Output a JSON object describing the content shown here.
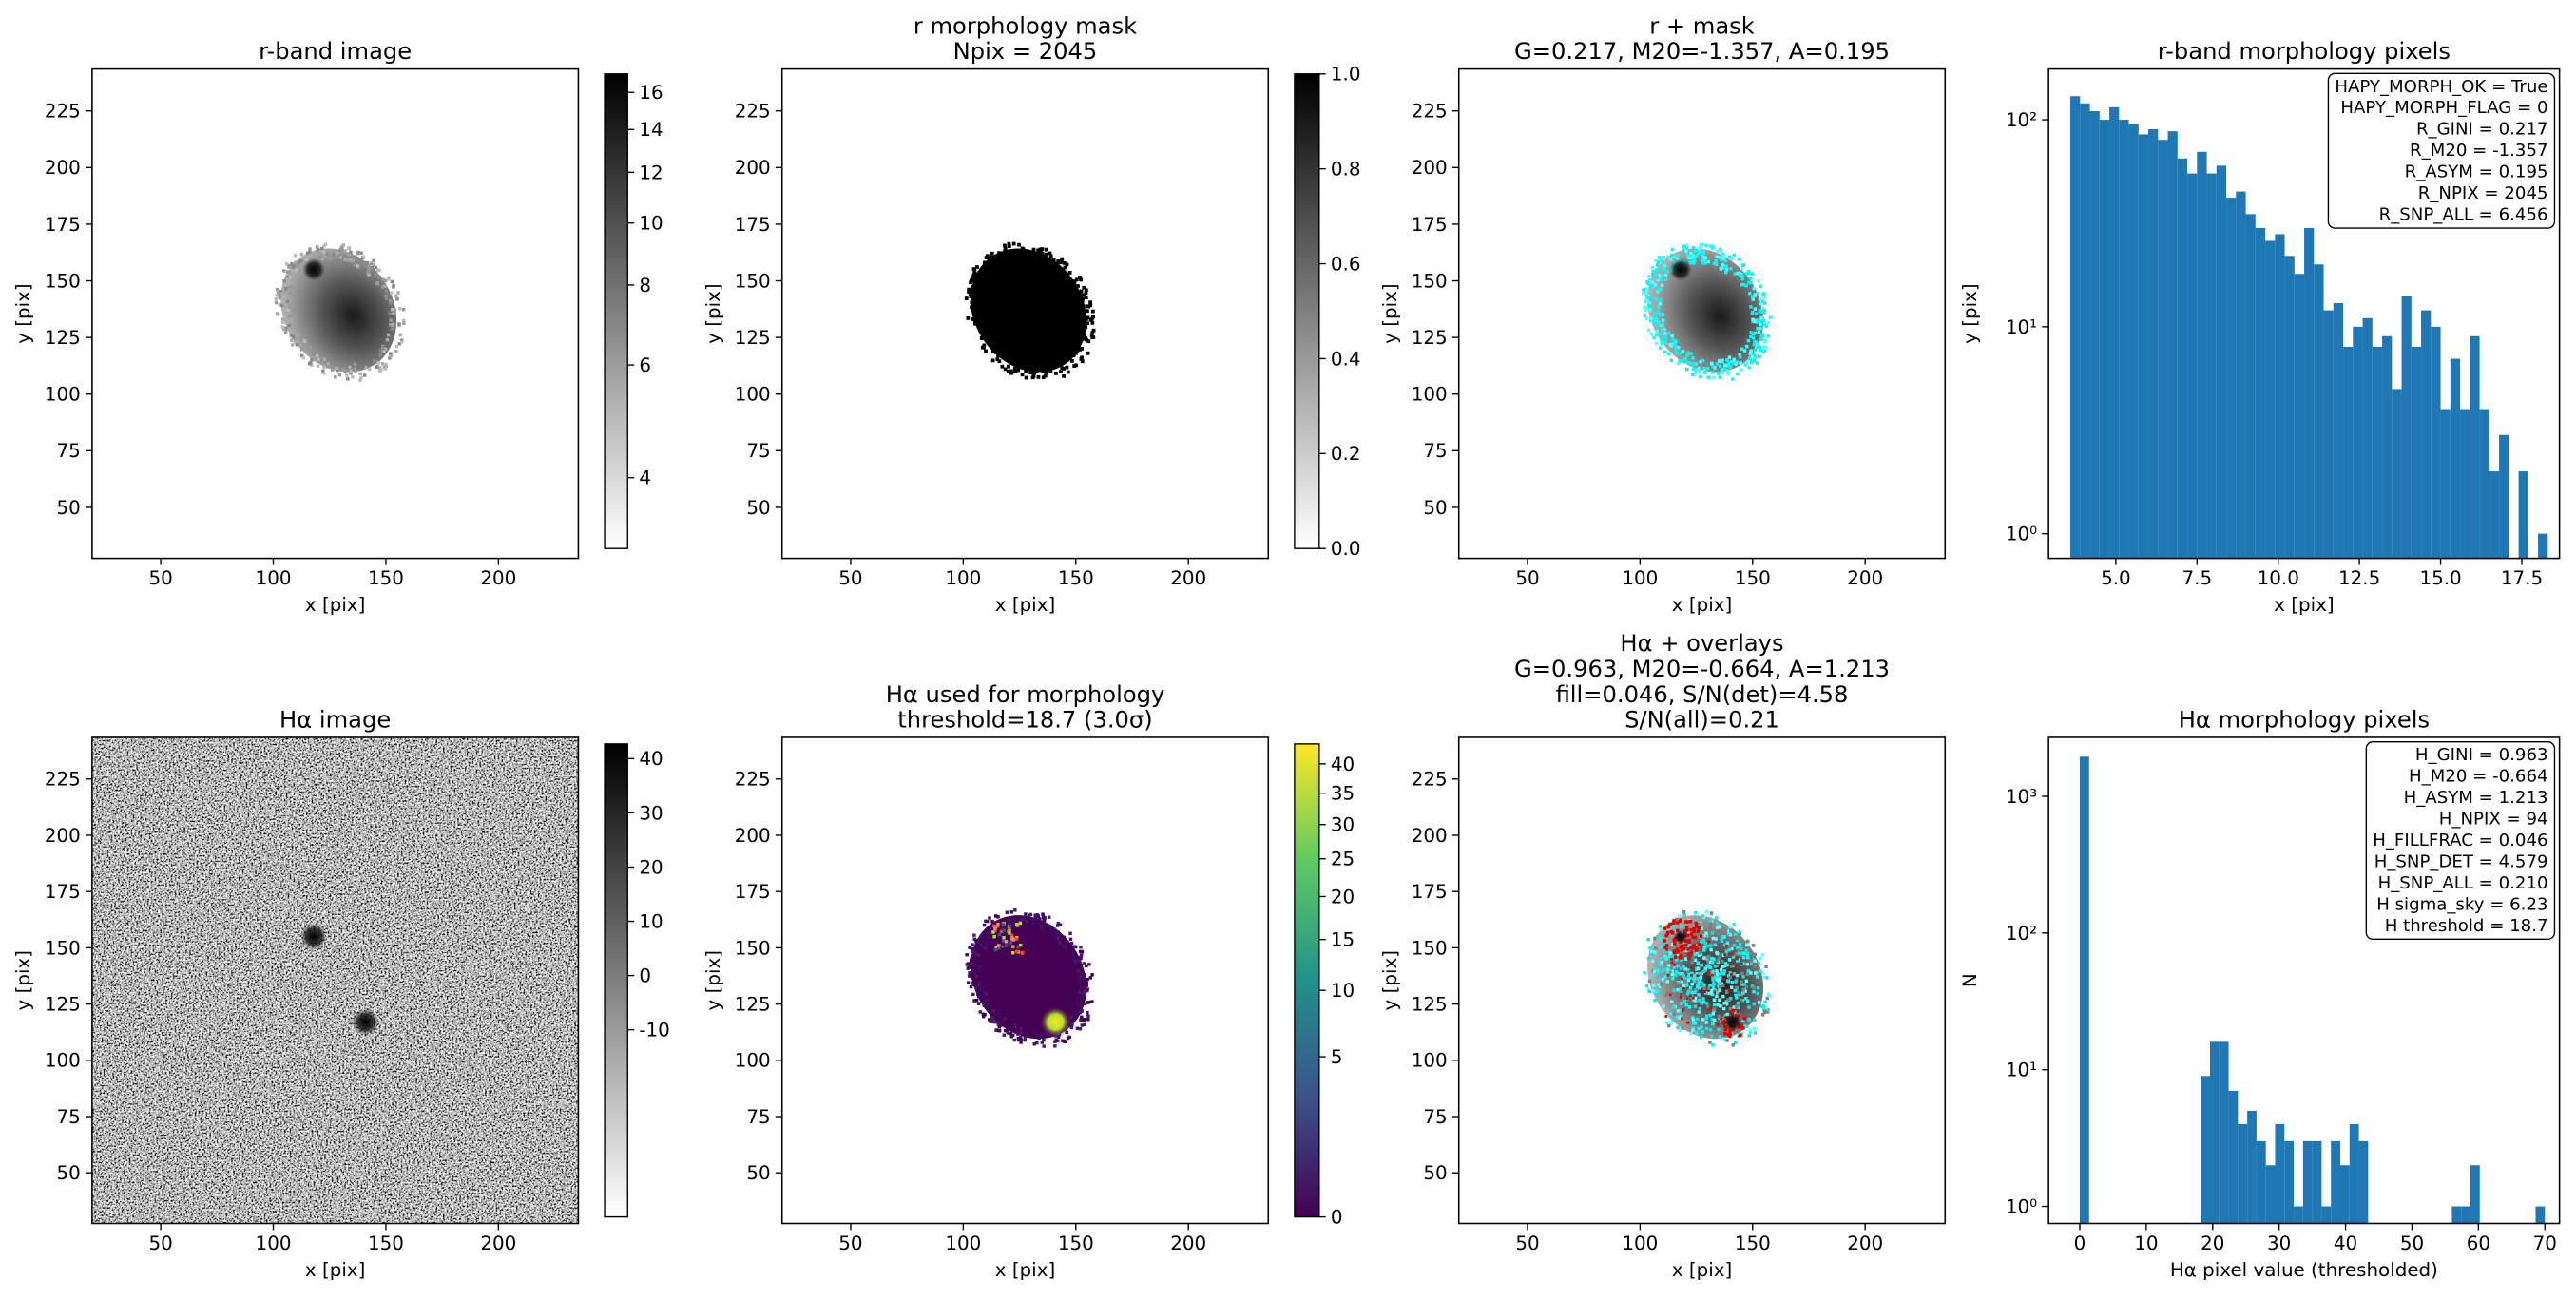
{
  "chart_data": [
    {
      "type": "image",
      "title": [
        "r-band image"
      ],
      "xlabel": "x [pix]",
      "ylabel": "y [pix]",
      "xlim": [
        19.5,
        235.5
      ],
      "ylim": [
        27.5,
        243.5
      ],
      "xticks": [
        50,
        100,
        150,
        200
      ],
      "yticks": [
        50,
        75,
        100,
        125,
        150,
        175,
        200,
        225
      ],
      "colorbar": {
        "cmap": "gray_r",
        "scale": "log",
        "lim": [
          3.1,
          17.1
        ],
        "ticks": [
          4,
          6,
          8,
          10,
          12,
          14,
          16
        ]
      }
    },
    {
      "type": "image",
      "title": [
        "r morphology mask",
        "Npix = 2045"
      ],
      "xlabel": "x [pix]",
      "ylabel": "y [pix]",
      "xlim": [
        19.5,
        235.5
      ],
      "ylim": [
        27.5,
        243.5
      ],
      "xticks": [
        50,
        100,
        150,
        200
      ],
      "yticks": [
        50,
        75,
        100,
        125,
        150,
        175,
        200,
        225
      ],
      "colorbar": {
        "cmap": "gray_r",
        "scale": "linear",
        "lim": [
          0,
          1
        ],
        "ticks": [
          {
            "value": 0,
            "label": "0.0"
          },
          0.2,
          0.4,
          0.6,
          0.8,
          {
            "value": 1,
            "label": "1.0"
          }
        ]
      }
    },
    {
      "type": "image",
      "title": [
        "r + mask",
        "G=0.217, M20=-1.357, A=0.195"
      ],
      "xlabel": "x [pix]",
      "ylabel": "y [pix]",
      "xlim": [
        19.5,
        235.5
      ],
      "ylim": [
        27.5,
        243.5
      ],
      "xticks": [
        50,
        100,
        150,
        200
      ],
      "yticks": [
        50,
        75,
        100,
        125,
        150,
        175,
        200,
        225
      ]
    },
    {
      "type": "histogram",
      "title": [
        "r-band morphology pixels"
      ],
      "xlabel": "x [pix]",
      "ylabel": "y [pix]",
      "color": "#1f77b4",
      "yscale": "log",
      "bins": [
        3.6,
        3.9,
        4.2,
        4.5,
        4.8,
        5.1,
        5.4,
        5.7,
        6,
        6.3,
        6.6,
        6.9,
        7.2,
        7.5,
        7.8,
        8.1,
        8.4,
        8.7,
        9,
        9.3,
        9.6,
        9.9,
        10.2,
        10.5,
        10.8,
        11.1,
        11.4,
        11.7,
        12,
        12.3,
        12.6,
        12.9,
        13.2,
        13.5,
        13.8,
        14.1,
        14.4,
        14.7,
        15,
        15.3,
        15.6,
        15.9,
        16.2,
        16.5,
        16.8,
        17.1,
        17.4,
        17.7,
        18,
        18.3
      ],
      "values": [
        130,
        120,
        110,
        100,
        115,
        100,
        95,
        85,
        90,
        80,
        88,
        65,
        55,
        70,
        55,
        60,
        42,
        45,
        35,
        30,
        26,
        28,
        22,
        18,
        30,
        20,
        12,
        13,
        8,
        10,
        11,
        8,
        9,
        5,
        14,
        8,
        12,
        10,
        4,
        7,
        4,
        9,
        4,
        2,
        3,
        0,
        2,
        0,
        1
      ],
      "xlim": [
        2.93,
        18.66
      ],
      "ylim": [
        0.76,
        176
      ],
      "xticks": [
        {
          "value": 5,
          "label": "5.0"
        },
        7.5,
        {
          "value": 10,
          "label": "10.0"
        },
        12.5,
        {
          "value": 15,
          "label": "15.0"
        },
        17.5
      ],
      "yticks": [
        {
          "value": 1,
          "label": "10⁰"
        },
        {
          "value": 10,
          "label": "10¹"
        },
        {
          "value": 100,
          "label": "10²"
        }
      ],
      "annotation": [
        "HAPY_MORPH_OK = True",
        "HAPY_MORPH_FLAG = 0",
        "R_GINI = 0.217",
        "R_M20 = -1.357",
        "R_ASYM = 0.195",
        "R_NPIX = 2045",
        "R_SNP_ALL = 6.456"
      ]
    },
    {
      "type": "image",
      "title": [
        "Hα image"
      ],
      "xlabel": "x [pix]",
      "ylabel": "y [pix]",
      "xlim": [
        19.5,
        235.5
      ],
      "ylim": [
        27.5,
        243.5
      ],
      "xticks": [
        50,
        100,
        150,
        200
      ],
      "yticks": [
        50,
        75,
        100,
        125,
        150,
        175,
        200,
        225
      ],
      "colorbar": {
        "cmap": "gray_r",
        "scale": "linear",
        "lim": [
          -44.5,
          42.7
        ],
        "ticks": [
          -10,
          0,
          10,
          20,
          30,
          40
        ]
      }
    },
    {
      "type": "image",
      "title": [
        "Hα used for morphology",
        "threshold=18.7 (3.0σ)"
      ],
      "xlabel": "x [pix]",
      "ylabel": "y [pix]",
      "xlim": [
        19.5,
        235.5
      ],
      "ylim": [
        27.5,
        243.5
      ],
      "xticks": [
        50,
        100,
        150,
        200
      ],
      "yticks": [
        50,
        75,
        100,
        125,
        150,
        175,
        200,
        225
      ],
      "colorbar": {
        "cmap": "viridis",
        "scale": "sqrt",
        "lim": [
          0,
          43.6
        ],
        "ticks": [
          0,
          5,
          10,
          15,
          20,
          25,
          30,
          35,
          40
        ]
      }
    },
    {
      "type": "image",
      "title": [
        "Hα + overlays",
        "G=0.963, M20=-0.664, A=1.213",
        "fill=0.046, S/N(det)=4.58",
        "S/N(all)=0.21"
      ],
      "xlabel": "x [pix]",
      "ylabel": "y [pix]",
      "xlim": [
        19.5,
        235.5
      ],
      "ylim": [
        27.5,
        243.5
      ],
      "xticks": [
        50,
        100,
        150,
        200
      ],
      "yticks": [
        50,
        75,
        100,
        125,
        150,
        175,
        200,
        225
      ]
    },
    {
      "type": "histogram",
      "title": [
        "Hα morphology pixels"
      ],
      "xlabel": "Hα pixel value (thresholded)",
      "ylabel": "N",
      "color": "#1f77b4",
      "yscale": "log",
      "bins": [
        0,
        1.4,
        2.8,
        4.2,
        5.6,
        7,
        8.4,
        9.8,
        11.2,
        12.6,
        14,
        15.4,
        16.8,
        18.2,
        19.6,
        21,
        22.4,
        23.8,
        25.2,
        26.6,
        28,
        29.4,
        30.8,
        32.2,
        33.6,
        35,
        36.4,
        37.8,
        39.2,
        40.6,
        42,
        43.4,
        44.8,
        46.2,
        47.6,
        49,
        50.4,
        51.8,
        53.2,
        54.6,
        56,
        57.4,
        58.8,
        60.2,
        61.6,
        63,
        64.4,
        65.8,
        67.2,
        68.6,
        70
      ],
      "values": [
        1951,
        0,
        0,
        0,
        0,
        0,
        0,
        0,
        0,
        0,
        0,
        0,
        0,
        9,
        16,
        16,
        7,
        4,
        5,
        3,
        2,
        4,
        3,
        1,
        3,
        3,
        1,
        3,
        2,
        4,
        3,
        0,
        0,
        0,
        0,
        0,
        0,
        0,
        0,
        0,
        1,
        1,
        2,
        0,
        0,
        0,
        0,
        0,
        0,
        1
      ],
      "xlim": [
        -4.7,
        72.2
      ],
      "ylim": [
        0.75,
        2700
      ],
      "xticks": [
        0,
        10,
        20,
        30,
        40,
        50,
        60,
        70
      ],
      "yticks": [
        {
          "value": 1,
          "label": "10⁰"
        },
        {
          "value": 10,
          "label": "10¹"
        },
        {
          "value": 100,
          "label": "10²"
        },
        {
          "value": 1000,
          "label": "10³"
        }
      ],
      "annotation": [
        "H_GINI = 0.963",
        "H_M20 = -0.664",
        "H_ASYM = 1.213",
        "H_NPIX = 94",
        "H_FILLFRAC = 0.046",
        "H_SNP_DET = 4.579",
        "H_SNP_ALL = 0.210",
        "H sigma_sky = 6.23",
        "H threshold = 18.7"
      ]
    }
  ]
}
